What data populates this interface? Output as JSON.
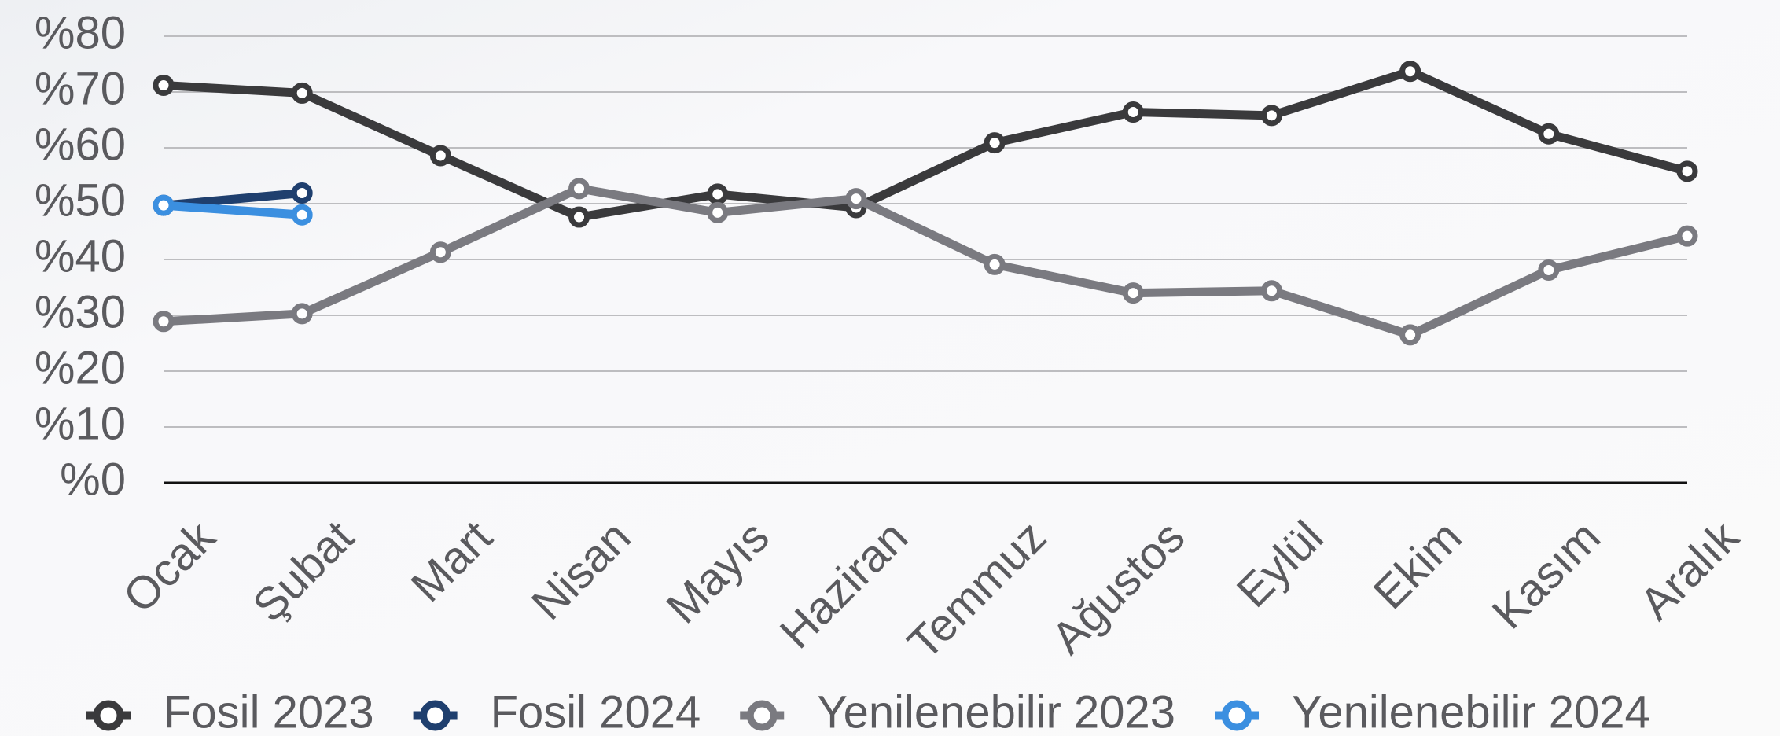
{
  "chart_data": {
    "type": "line",
    "categories": [
      "Ocak",
      "Şubat",
      "Mart",
      "Nisan",
      "Mayıs",
      "Haziran",
      "Temmuz",
      "Ağustos",
      "Eylül",
      "Ekim",
      "Kasım",
      "Aralık"
    ],
    "series": [
      {
        "name": "Fosil 2023",
        "color": "#3a3a3c",
        "values": [
          71.2,
          69.8,
          58.6,
          47.6,
          51.7,
          49.3,
          60.9,
          66.4,
          65.8,
          73.7,
          62.5,
          55.8
        ]
      },
      {
        "name": "Fosil 2024",
        "color": "#1f3f6e",
        "values": [
          49.7,
          51.9,
          null,
          null,
          null,
          null,
          null,
          null,
          null,
          null,
          null,
          null
        ]
      },
      {
        "name": "Yenilenebilir 2023",
        "color": "#7a7a80",
        "values": [
          28.9,
          30.3,
          41.3,
          52.7,
          48.4,
          50.9,
          39.1,
          34.0,
          34.4,
          26.5,
          38.1,
          44.2
        ]
      },
      {
        "name": "Yenilenebilir 2024",
        "color": "#3b8fe0",
        "values": [
          49.7,
          48.0,
          null,
          null,
          null,
          null,
          null,
          null,
          null,
          null,
          null,
          null
        ]
      }
    ],
    "ylim": [
      0,
      80
    ],
    "yticks": [
      {
        "value": 0,
        "label": "%0"
      },
      {
        "value": 10,
        "label": "%10"
      },
      {
        "value": 20,
        "label": "%20"
      },
      {
        "value": 30,
        "label": "%30"
      },
      {
        "value": 40,
        "label": "%40"
      },
      {
        "value": 50,
        "label": "%50"
      },
      {
        "value": 60,
        "label": "%60"
      },
      {
        "value": 70,
        "label": "%70"
      },
      {
        "value": 80,
        "label": "%80"
      }
    ],
    "grid": true,
    "legend": "bottom"
  }
}
